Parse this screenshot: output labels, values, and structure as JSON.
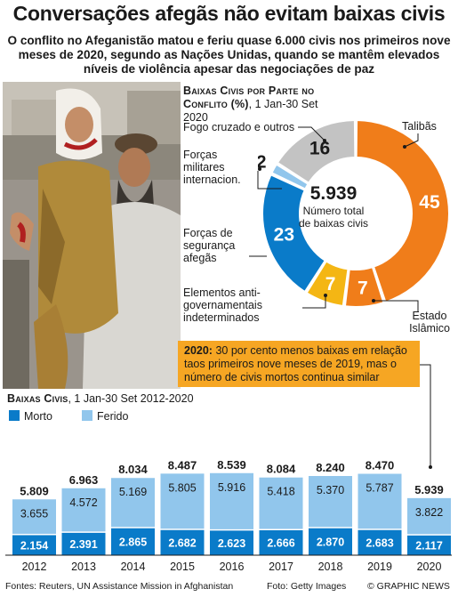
{
  "title": "Conversações afegãs não evitam baixas civis",
  "subtitle": "O conflito no Afeganistão matou e feriu quase 6.000 civis nos primeiros nove meses de 2020, segundo as Nações Unidas, quando se mantêm elevados níveis de violência apesar das negociações de paz",
  "donut_section": {
    "title": "Baixas Civis por Parte no Conflito (%)",
    "date": ", 1 Jan-30 Set 2020",
    "center_value": "5.939",
    "center_label": "Número total de baixas civis",
    "labels": {
      "crossfire": "Fogo cruzado e outros",
      "intl": "Forças militares internacion.",
      "afghan": "Forças de segurança afegãs",
      "antigov": "Elementos anti-governamentais indeterminados",
      "taliban": "Talibãs",
      "is": "Estado Islâmico"
    }
  },
  "note": {
    "bold": "2020:",
    "text": " 30 por cento menos baixas em relação taos primeiros nove meses de 2019, mas o número de civis mortos continua similar"
  },
  "bar_section": {
    "title": "Baixas Civis",
    "date": ", 1 Jan-30 Set 2012-2020"
  },
  "legend": {
    "killed": "Morto",
    "injured": "Ferido"
  },
  "colors": {
    "dark_blue": "#0a7bc9",
    "light_blue": "#91c6ec",
    "orange": "#f07d1a",
    "yellow": "#f4b614",
    "grey": "#c3c3c3",
    "note": "#f6a623"
  },
  "footer": {
    "sources": "Fontes: Reuters, UN Assistance Mission in Afghanistan",
    "photo": "Foto: Getty Images",
    "credit": "© GRAPHIC NEWS"
  },
  "chart_data": [
    {
      "type": "pie",
      "title": "Baixas Civis por Parte no Conflito (%)",
      "total_label": "5.939",
      "slices": [
        {
          "name": "Talibãs",
          "value": 45,
          "color": "#f07d1a"
        },
        {
          "name": "Estado Islâmico",
          "value": 7,
          "color": "#f07d1a"
        },
        {
          "name": "Elementos anti-governamentais indeterminados",
          "value": 7,
          "color": "#f4b614"
        },
        {
          "name": "Forças de segurança afegãs",
          "value": 23,
          "color": "#0a7bc9"
        },
        {
          "name": "Forças militares internacion.",
          "value": 2,
          "color": "#91c6ec"
        },
        {
          "name": "Fogo cruzado e outros",
          "value": 16,
          "color": "#c3c3c3"
        }
      ]
    },
    {
      "type": "bar",
      "title": "Baixas Civis",
      "categories": [
        "2012",
        "2013",
        "2014",
        "2015",
        "2016",
        "2017",
        "2018",
        "2019",
        "2020"
      ],
      "series": [
        {
          "name": "Morto",
          "values": [
            2154,
            2391,
            2865,
            2682,
            2623,
            2666,
            2870,
            2683,
            2117
          ],
          "labels": [
            "2.154",
            "2.391",
            "2.865",
            "2.682",
            "2.623",
            "2.666",
            "2.870",
            "2.683",
            "2.117"
          ]
        },
        {
          "name": "Ferido",
          "values": [
            3655,
            4572,
            5169,
            5805,
            5916,
            5418,
            5370,
            5787,
            3822
          ],
          "labels": [
            "3.655",
            "4.572",
            "5.169",
            "5.805",
            "5.916",
            "5.418",
            "5.370",
            "5.787",
            "3.822"
          ]
        }
      ],
      "totals": [
        "5.809",
        "6.963",
        "8.034",
        "8.487",
        "8.539",
        "8.084",
        "8.240",
        "8.470",
        "5.939"
      ]
    }
  ]
}
